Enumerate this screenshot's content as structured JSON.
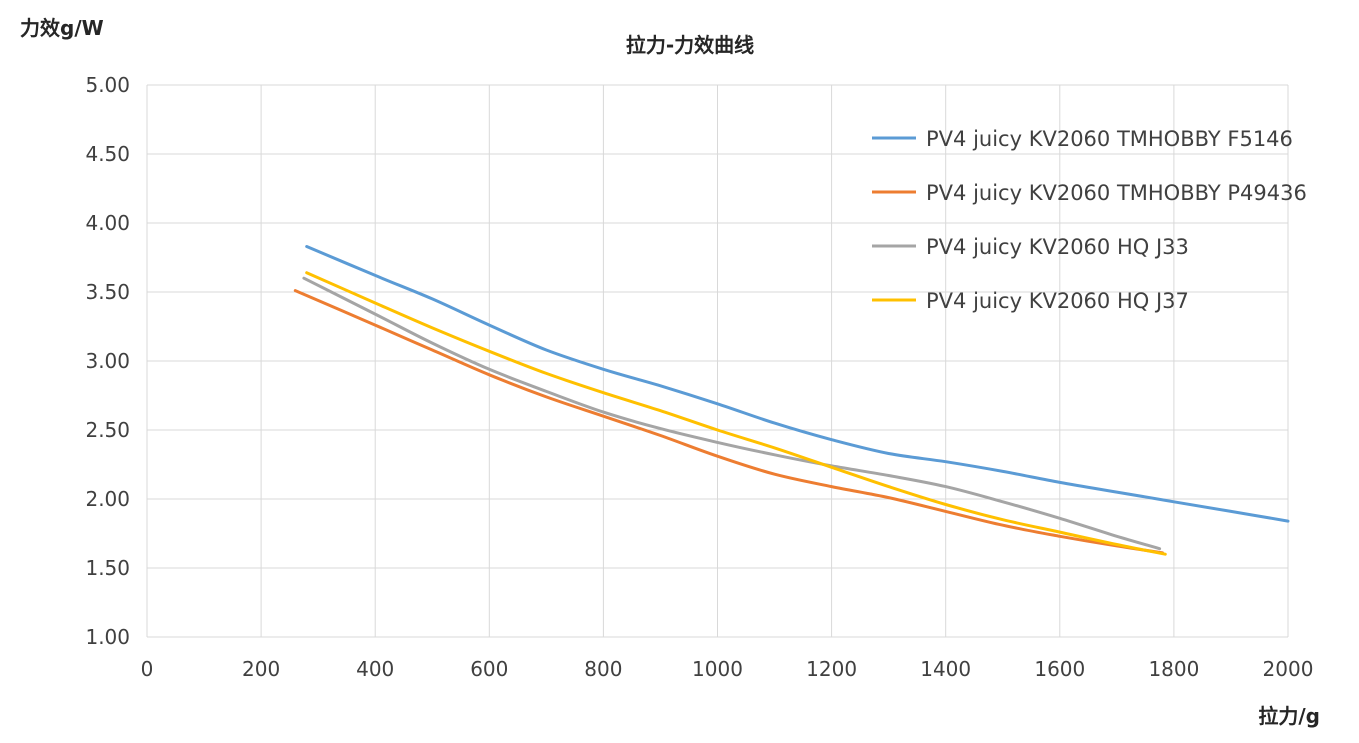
{
  "chart_data": {
    "type": "line",
    "title": "拉力-力效曲线",
    "xlabel": "拉力/g",
    "ylabel": "力效g/W",
    "xlim": [
      0,
      2000
    ],
    "ylim": [
      1.0,
      5.0
    ],
    "xticks": [
      "0",
      "200",
      "400",
      "600",
      "800",
      "1000",
      "1200",
      "1400",
      "1600",
      "1800",
      "2000"
    ],
    "yticks": [
      "5.00",
      "4.50",
      "4.00",
      "3.50",
      "3.00",
      "2.50",
      "2.00",
      "1.50",
      "1.00"
    ],
    "xtick_values": [
      0,
      200,
      400,
      600,
      800,
      1000,
      1200,
      1400,
      1600,
      1800,
      2000
    ],
    "ytick_values": [
      5.0,
      4.5,
      4.0,
      3.5,
      3.0,
      2.5,
      2.0,
      1.5,
      1.0
    ],
    "grid": true,
    "legend_position": "top-right",
    "series": [
      {
        "name": "PV4 juicy KV2060 TMHOBBY F5146",
        "color": "#5B9BD5",
        "x": [
          280,
          400,
          500,
          600,
          700,
          800,
          900,
          1000,
          1100,
          1200,
          1300,
          1400,
          1500,
          1600,
          1700,
          1800,
          1900,
          2000
        ],
        "y": [
          3.83,
          3.62,
          3.45,
          3.26,
          3.08,
          2.94,
          2.82,
          2.69,
          2.55,
          2.43,
          2.33,
          2.27,
          2.2,
          2.12,
          2.05,
          1.98,
          1.91,
          1.84
        ]
      },
      {
        "name": "PV4 juicy KV2060 TMHOBBY P49436",
        "color": "#ED7D31",
        "x": [
          260,
          400,
          500,
          600,
          700,
          800,
          900,
          1000,
          1100,
          1200,
          1300,
          1400,
          1500,
          1600,
          1700,
          1780
        ],
        "y": [
          3.51,
          3.26,
          3.08,
          2.9,
          2.74,
          2.6,
          2.46,
          2.31,
          2.18,
          2.09,
          2.01,
          1.91,
          1.81,
          1.73,
          1.66,
          1.61
        ]
      },
      {
        "name": "PV4 juicy KV2060 HQ J33",
        "color": "#A5A5A5",
        "x": [
          275,
          400,
          500,
          600,
          700,
          800,
          900,
          1000,
          1100,
          1200,
          1300,
          1400,
          1500,
          1600,
          1700,
          1775
        ],
        "y": [
          3.6,
          3.34,
          3.13,
          2.94,
          2.78,
          2.63,
          2.51,
          2.41,
          2.32,
          2.24,
          2.17,
          2.09,
          1.98,
          1.86,
          1.73,
          1.64
        ]
      },
      {
        "name": "PV4 juicy KV2060 HQ J37",
        "color": "#FFC000",
        "x": [
          280,
          400,
          500,
          600,
          700,
          800,
          900,
          1000,
          1100,
          1200,
          1300,
          1400,
          1500,
          1600,
          1700,
          1785
        ],
        "y": [
          3.64,
          3.42,
          3.24,
          3.07,
          2.91,
          2.77,
          2.64,
          2.5,
          2.37,
          2.23,
          2.09,
          1.96,
          1.85,
          1.76,
          1.67,
          1.6
        ]
      }
    ]
  }
}
